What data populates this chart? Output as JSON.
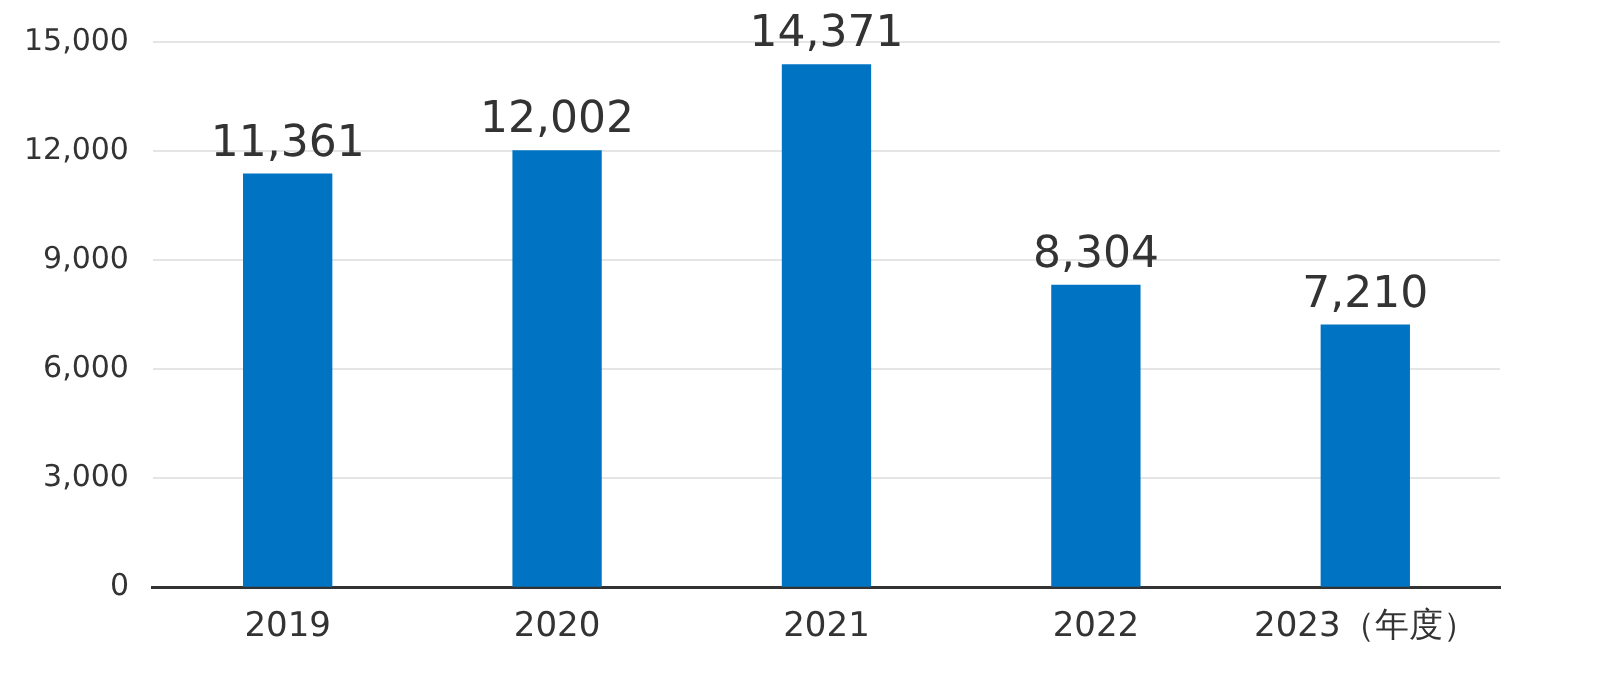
{
  "chart_data": {
    "type": "bar",
    "categories": [
      "2019",
      "2020",
      "2021",
      "2022",
      "2023（年度）"
    ],
    "values": [
      11361,
      12002,
      14371,
      8304,
      7210
    ],
    "color": "#0073c2",
    "ylim": [
      0,
      15000
    ],
    "yticks": [
      {
        "value": 0,
        "label": "0"
      },
      {
        "value": 3000,
        "label": "3,000"
      },
      {
        "value": 6000,
        "label": "6,000"
      },
      {
        "value": 9000,
        "label": "9,000"
      },
      {
        "value": 12000,
        "label": "12,000"
      },
      {
        "value": 15000,
        "label": "15,000"
      }
    ],
    "value_labels": [
      "11,361",
      "12,002",
      "14,371",
      "8,304",
      "7,210"
    ],
    "grid": "y",
    "legend": false
  }
}
